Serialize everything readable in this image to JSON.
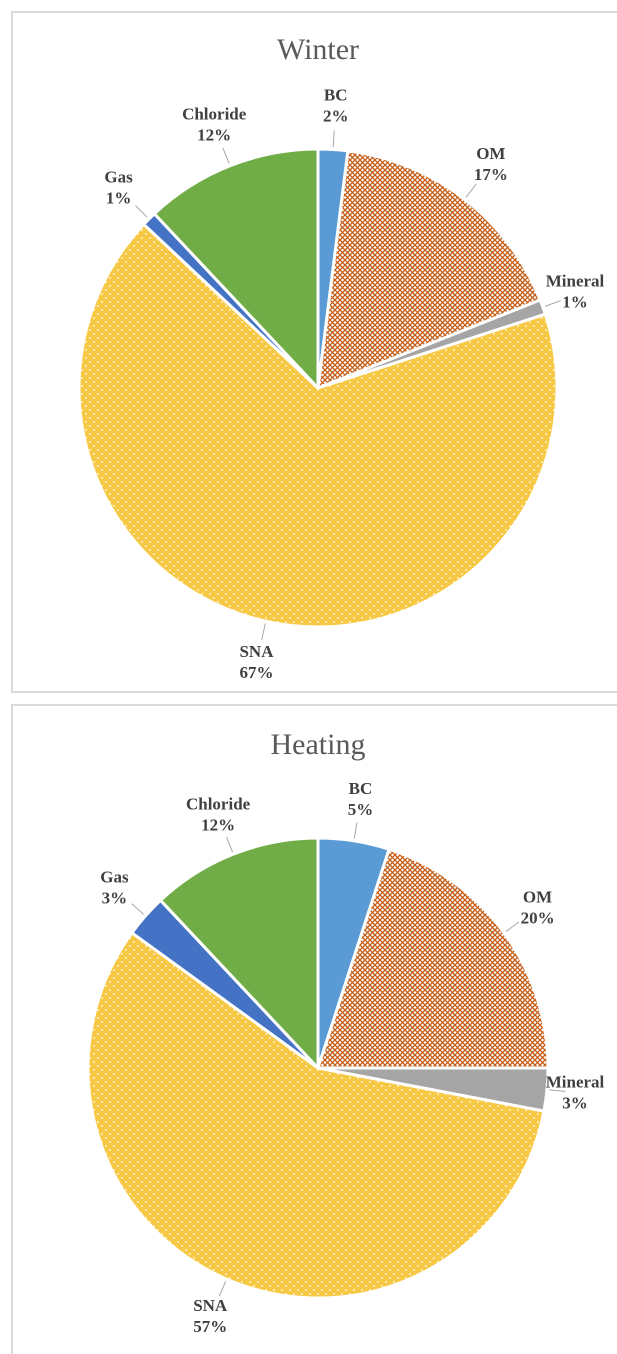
{
  "chart_data": [
    {
      "type": "pie",
      "title": "Winter",
      "categories": [
        "BC",
        "OM",
        "Mineral",
        "SNA",
        "Gas",
        "Chloride"
      ],
      "values": [
        2,
        17,
        1,
        67,
        1,
        12
      ],
      "value_labels": [
        "2%",
        "17%",
        "1%",
        "67%",
        "1%",
        "12%"
      ],
      "colors": [
        "#5b9bd5",
        "#c55a11",
        "#a5a5a5",
        "#f7c843",
        "#4472c4",
        "#70ad47"
      ],
      "fill_patterns": [
        "solid",
        "crosshatch",
        "solid",
        "dots",
        "solid",
        "solid"
      ]
    },
    {
      "type": "pie",
      "title": "Heating",
      "categories": [
        "BC",
        "OM",
        "Mineral",
        "SNA",
        "Gas",
        "Chloride"
      ],
      "values": [
        5,
        20,
        3,
        57,
        3,
        12
      ],
      "value_labels": [
        "5%",
        "20%",
        "3%",
        "57%",
        "3%",
        "12%"
      ],
      "colors": [
        "#5b9bd5",
        "#c55a11",
        "#a5a5a5",
        "#f7c843",
        "#4472c4",
        "#70ad47"
      ],
      "fill_patterns": [
        "solid",
        "crosshatch",
        "solid",
        "dots",
        "solid",
        "solid"
      ]
    }
  ]
}
